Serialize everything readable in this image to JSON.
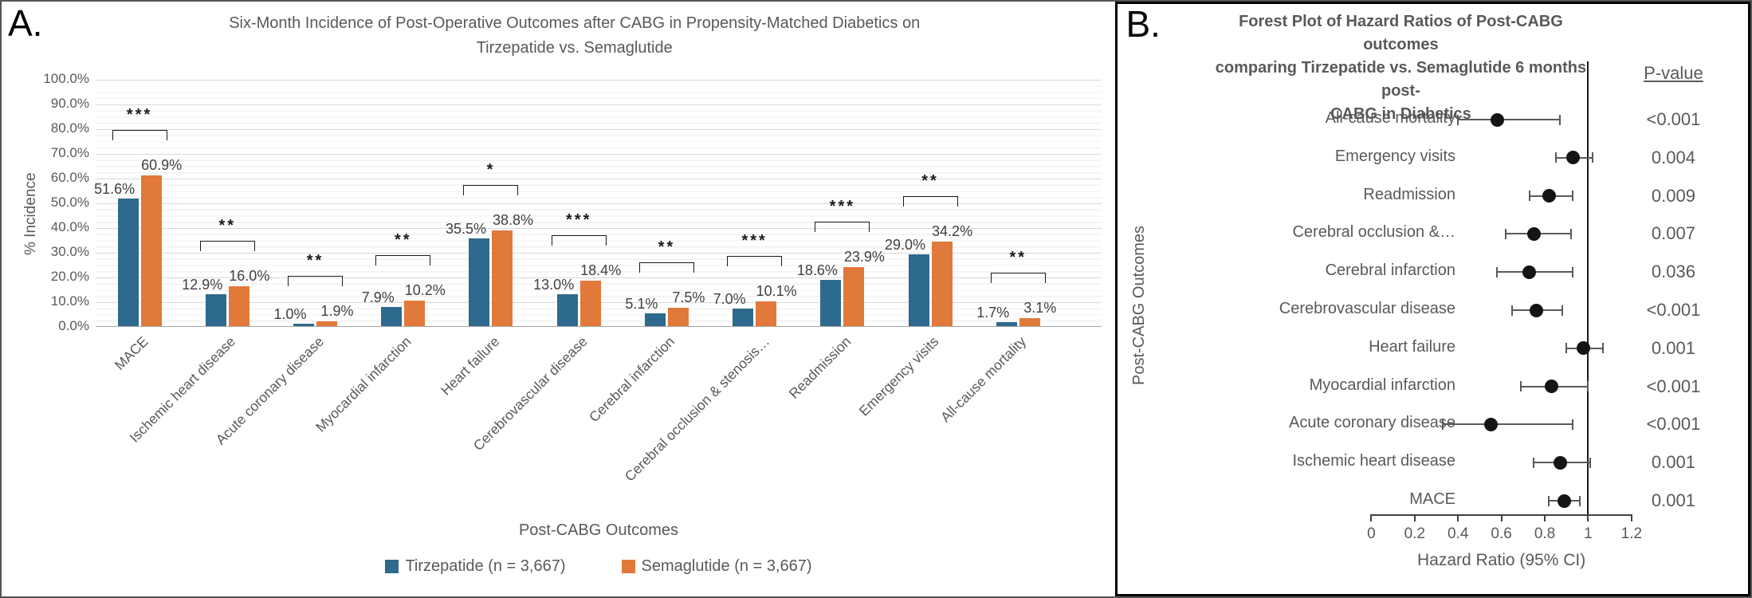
{
  "panel_a": {
    "label": "A.",
    "title_lines": [
      "Six-Month Incidence of Post-Operative Outcomes after CABG in Propensity-Matched Diabetics on",
      "Tirzepatide vs. Semaglutide"
    ],
    "y_axis_label": "% Incidence",
    "x_axis_label": "Post-CABG Outcomes",
    "legend": [
      {
        "label": "Tirzepatide (n = 3,667)",
        "color": "#2d6a8d"
      },
      {
        "label": "Semaglutide (n = 3,667)",
        "color": "#e1793b"
      }
    ]
  },
  "panel_b": {
    "label": "B.",
    "title_lines": [
      "Forest Plot of Hazard Ratios of Post-CABG outcomes",
      "comparing Tirzepatide vs. Semaglutide 6 months post-",
      "CABG in Diabetics"
    ],
    "pvalue_header": "P-value",
    "y_axis_label": "Post-CABG Outcomes",
    "x_axis_label": "Hazard Ratio (95% CI)"
  },
  "colors": {
    "tirzepatide": "#2d6a8d",
    "semaglutide": "#e1793b",
    "text_gray": "#595959",
    "value_label": "#404040",
    "forest_marker": "#141414"
  },
  "chart_data": [
    {
      "type": "bar",
      "title": "Six-Month Incidence of Post-Operative Outcomes after CABG in Propensity-Matched Diabetics on Tirzepatide vs. Semaglutide",
      "xlabel": "Post-CABG Outcomes",
      "ylabel": "% Incidence",
      "ylim": [
        0,
        100
      ],
      "y_ticks": [
        "100.0%",
        "90.0%",
        "80.0%",
        "70.0%",
        "60.0%",
        "50.0%",
        "40.0%",
        "30.0%",
        "20.0%",
        "10.0%",
        "0.0%"
      ],
      "y_tick_values": [
        100,
        90,
        80,
        70,
        60,
        50,
        40,
        30,
        20,
        10,
        0
      ],
      "grid": "on",
      "legend_position": "bottom",
      "categories": [
        "MACE",
        "Ischemic heart disease",
        "Acute coronary disease",
        "Myocardial infarction",
        "Heart failure",
        "Cerebrovascular disease",
        "Cerebral infarction",
        "Cerebral occlusion & stenosis…",
        "Readmission",
        "Emergency visits",
        "All-cause mortality"
      ],
      "series": [
        {
          "name": "Tirzepatide (n = 3,667)",
          "values": [
            51.6,
            12.9,
            1.0,
            7.9,
            35.5,
            13.0,
            5.1,
            7.0,
            18.6,
            29.0,
            1.7
          ],
          "labels": [
            "51.6%",
            "12.9%",
            "1.0%",
            "7.9%",
            "35.5%",
            "13.0%",
            "5.1%",
            "7.0%",
            "18.6%",
            "29.0%",
            "1.7%"
          ]
        },
        {
          "name": "Semaglutide (n = 3,667)",
          "values": [
            60.9,
            16.0,
            1.9,
            10.2,
            38.8,
            18.4,
            7.5,
            10.1,
            23.9,
            34.2,
            3.1
          ],
          "labels": [
            "60.9%",
            "16.0%",
            "1.9%",
            "10.2%",
            "38.8%",
            "18.4%",
            "7.5%",
            "10.1%",
            "23.9%",
            "34.2%",
            "3.1%"
          ]
        }
      ],
      "significance": [
        "***",
        "**",
        "**",
        "**",
        "*",
        "***",
        "**",
        "***",
        "***",
        "**",
        "**"
      ]
    },
    {
      "type": "scatter",
      "subtype": "forest-plot",
      "title": "Forest Plot of Hazard Ratios of Post-CABG outcomes comparing Tirzepatide vs. Semaglutide 6 months post-CABG in Diabetics",
      "xlabel": "Hazard Ratio (95% CI)",
      "ylabel": "Post-CABG Outcomes",
      "xlim": [
        0,
        1.2
      ],
      "x_ticks": [
        "0",
        "0.2",
        "0.4",
        "0.6",
        "0.8",
        "1",
        "1.2"
      ],
      "x_tick_values": [
        0,
        0.2,
        0.4,
        0.6,
        0.8,
        1,
        1.2
      ],
      "reference_line": 1,
      "rows": [
        {
          "label": "All-cause mortality",
          "hr": 0.58,
          "ci_low": 0.4,
          "ci_high": 0.87,
          "p": "<0.001"
        },
        {
          "label": "Emergency visits",
          "hr": 0.93,
          "ci_low": 0.85,
          "ci_high": 1.02,
          "p": "0.004"
        },
        {
          "label": "Readmission",
          "hr": 0.82,
          "ci_low": 0.73,
          "ci_high": 0.93,
          "p": "0.009"
        },
        {
          "label": "Cerebral occlusion &…",
          "hr": 0.75,
          "ci_low": 0.62,
          "ci_high": 0.92,
          "p": "0.007"
        },
        {
          "label": "Cerebral infarction",
          "hr": 0.73,
          "ci_low": 0.58,
          "ci_high": 0.93,
          "p": "0.036"
        },
        {
          "label": "Cerebrovascular disease",
          "hr": 0.76,
          "ci_low": 0.65,
          "ci_high": 0.88,
          "p": "<0.001"
        },
        {
          "label": "Heart failure",
          "hr": 0.98,
          "ci_low": 0.9,
          "ci_high": 1.07,
          "p": "0.001"
        },
        {
          "label": "Myocardial infarction",
          "hr": 0.83,
          "ci_low": 0.69,
          "ci_high": 1.0,
          "p": "<0.001"
        },
        {
          "label": "Acute coronary disease",
          "hr": 0.55,
          "ci_low": 0.33,
          "ci_high": 0.93,
          "p": "<0.001"
        },
        {
          "label": "Ischemic heart disease",
          "hr": 0.87,
          "ci_low": 0.75,
          "ci_high": 1.01,
          "p": "0.001"
        },
        {
          "label": "MACE",
          "hr": 0.89,
          "ci_low": 0.82,
          "ci_high": 0.96,
          "p": "0.001"
        }
      ]
    }
  ]
}
